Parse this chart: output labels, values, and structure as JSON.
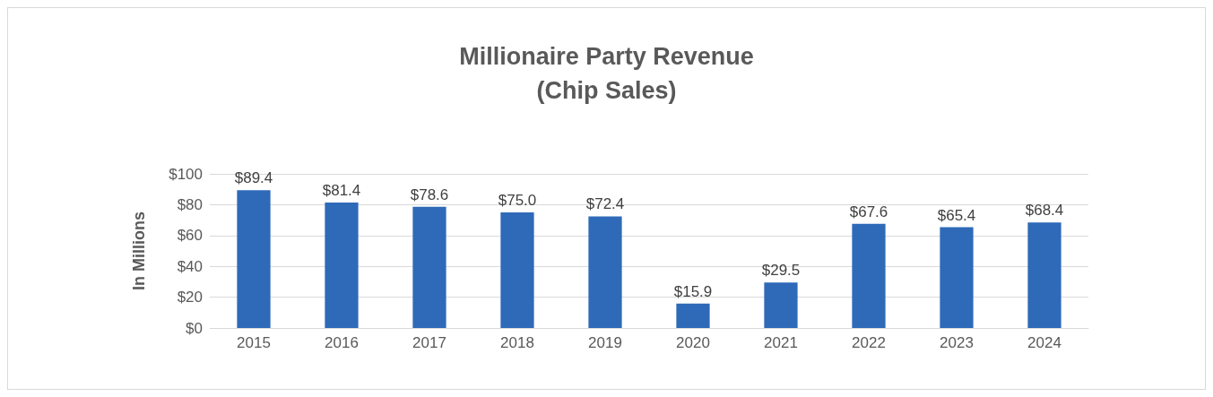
{
  "chart_data": {
    "type": "bar",
    "title": "Millionaire Party Revenue\n(Chip Sales)",
    "ylabel": "In Millions",
    "categories": [
      "2015",
      "2016",
      "2017",
      "2018",
      "2019",
      "2020",
      "2021",
      "2022",
      "2023",
      "2024"
    ],
    "values": [
      89.4,
      81.4,
      78.6,
      75.0,
      72.4,
      15.9,
      29.5,
      67.6,
      65.4,
      68.4
    ],
    "value_labels": [
      "$89.4",
      "$81.4",
      "$78.6",
      "$75.0",
      "$72.4",
      "$15.9",
      "$29.5",
      "$67.6",
      "$65.4",
      "$68.4"
    ],
    "color": "#2e6ab8",
    "ylim": [
      0,
      100
    ],
    "yticks": [
      {
        "value": 0,
        "label": "$0"
      },
      {
        "value": 20,
        "label": "$20"
      },
      {
        "value": 40,
        "label": "$40"
      },
      {
        "value": 60,
        "label": "$60"
      },
      {
        "value": 80,
        "label": "$80"
      },
      {
        "value": 100,
        "label": "$100"
      }
    ],
    "grid": true
  }
}
